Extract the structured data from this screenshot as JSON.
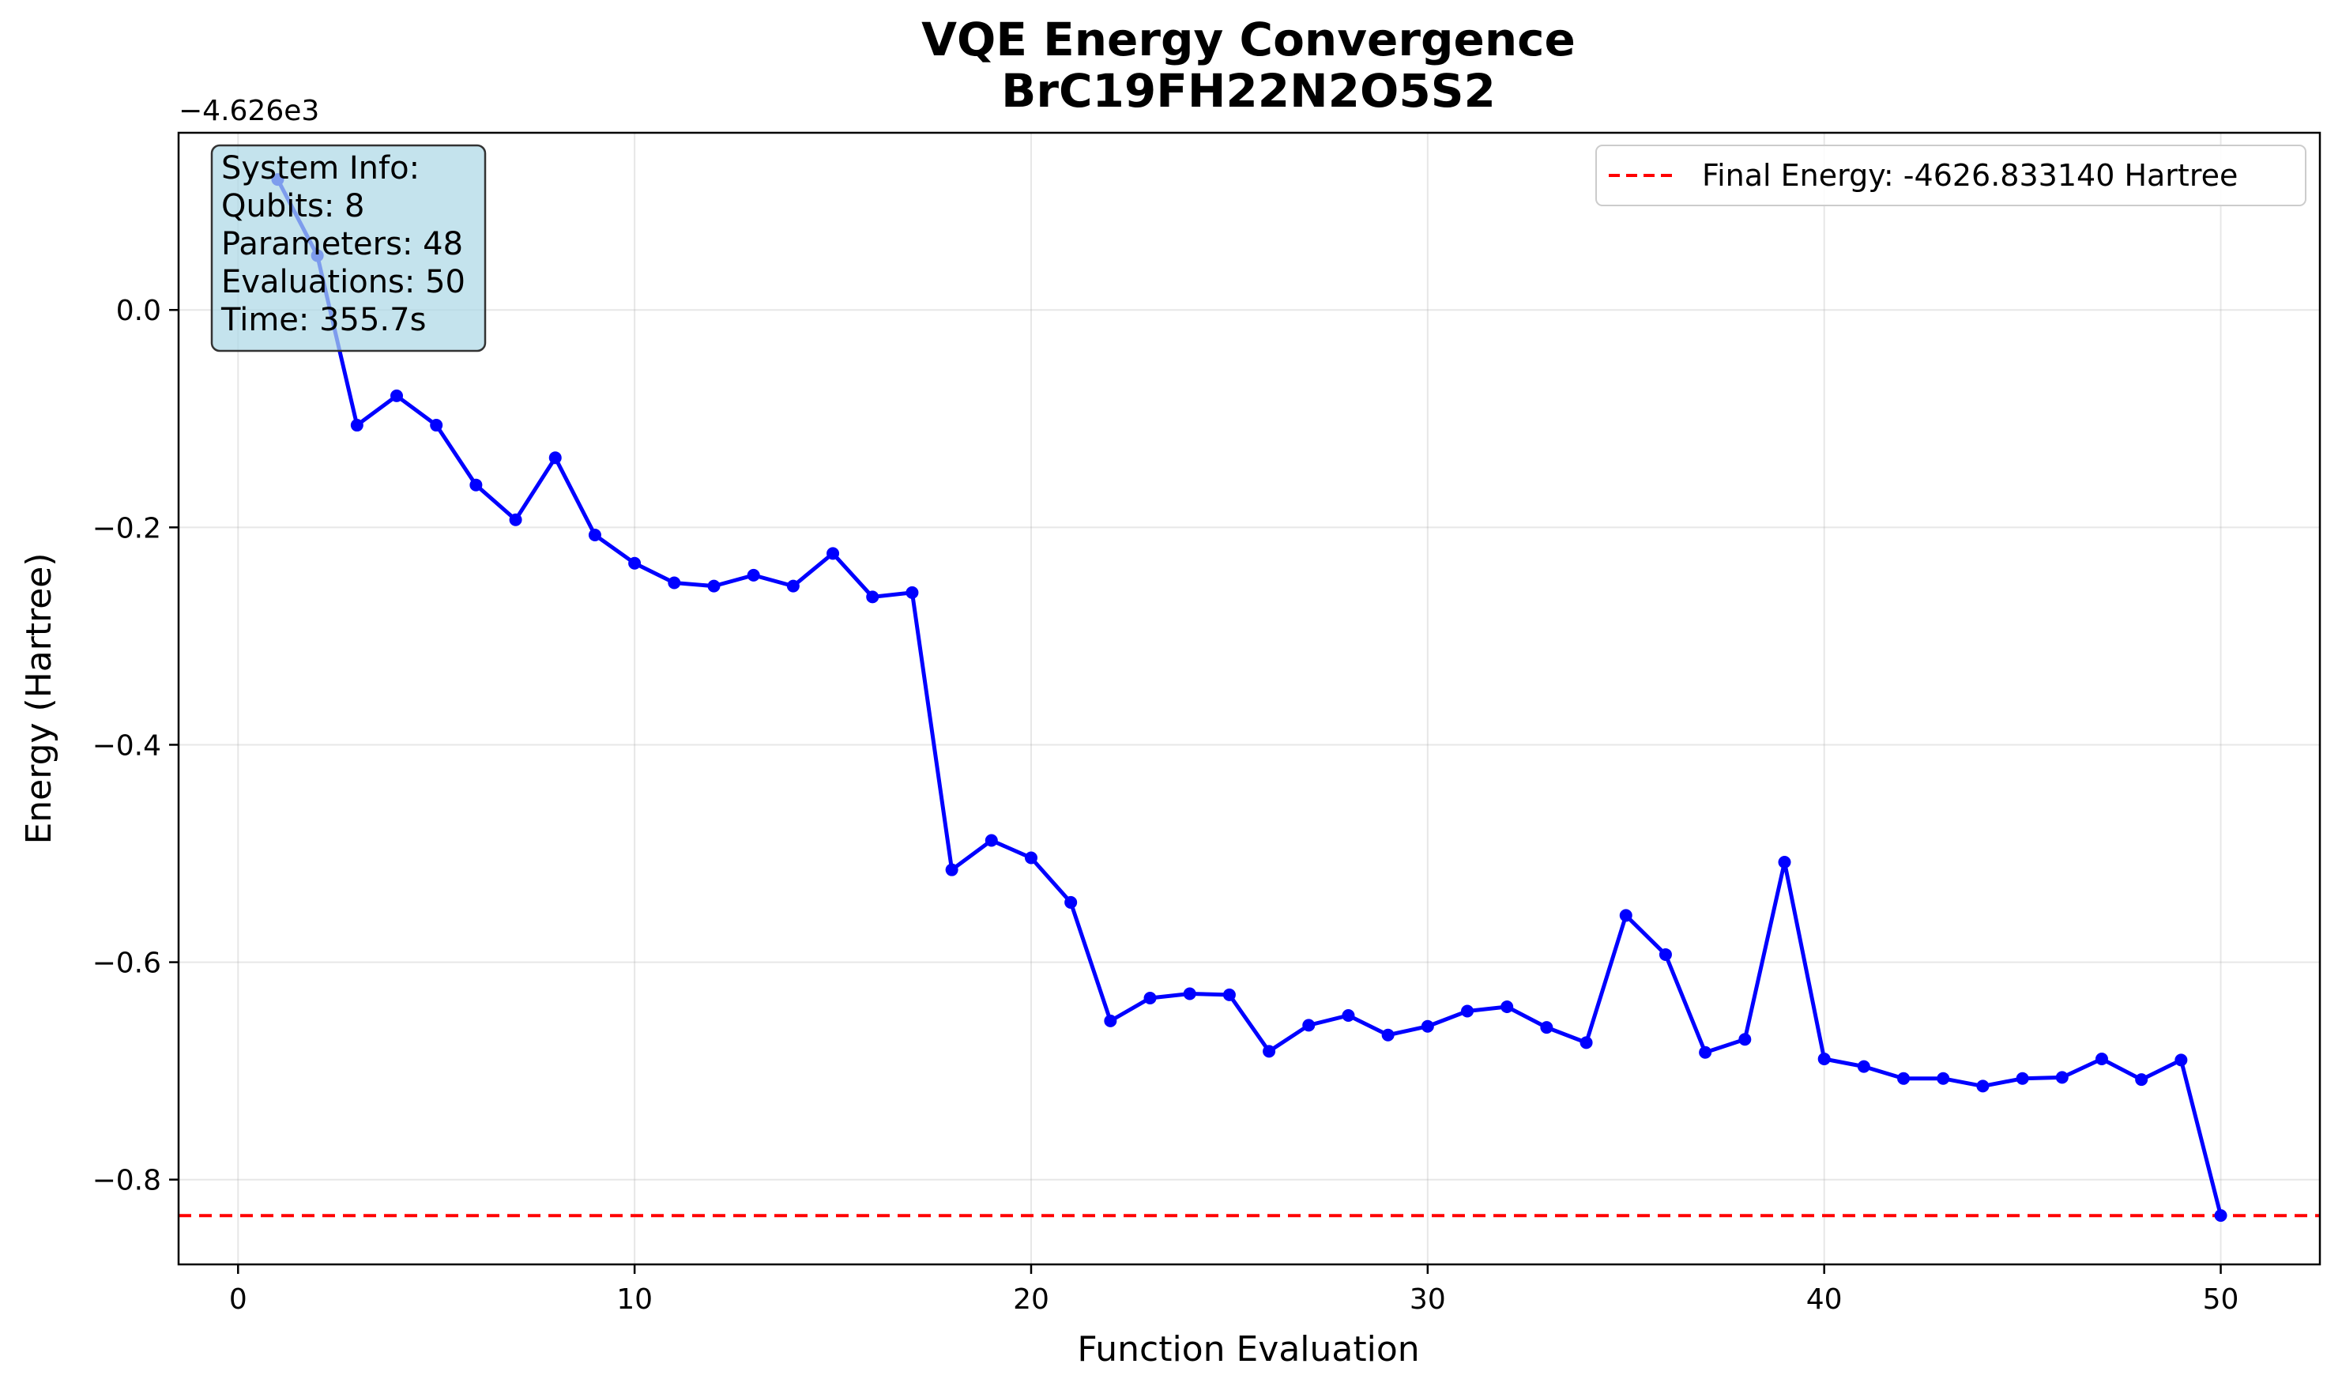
{
  "chart_data": {
    "type": "line",
    "title": "VQE Energy Convergence",
    "subtitle": "BrC19FH22N2O5S2",
    "xlabel": "Function Evaluation",
    "ylabel": "Energy (Hartree)",
    "y_offset_label": "−4.626e3",
    "y_offset": -4626,
    "xlim": [
      -1.5,
      52.5
    ],
    "ylim": [
      -0.878,
      0.163
    ],
    "xticks": [
      0,
      10,
      20,
      30,
      40,
      50
    ],
    "yticks": [
      0.0,
      -0.2,
      -0.4,
      -0.6,
      -0.8
    ],
    "ytick_labels": [
      "0.0",
      "−0.2",
      "−0.4",
      "−0.6",
      "−0.8"
    ],
    "grid": true,
    "series": [
      {
        "color": "#0000ff",
        "marker": "circle",
        "x": [
          1,
          2,
          3,
          4,
          5,
          6,
          7,
          8,
          9,
          10,
          11,
          12,
          13,
          14,
          15,
          16,
          17,
          18,
          19,
          20,
          21,
          22,
          23,
          24,
          25,
          26,
          27,
          28,
          29,
          30,
          31,
          32,
          33,
          34,
          35,
          36,
          37,
          38,
          39,
          40,
          41,
          42,
          43,
          44,
          45,
          46,
          47,
          48,
          49,
          50
        ],
        "y": [
          0.12,
          0.05,
          -0.106,
          -0.079,
          -0.106,
          -0.161,
          -0.193,
          -0.136,
          -0.207,
          -0.233,
          -0.251,
          -0.254,
          -0.244,
          -0.254,
          -0.224,
          -0.264,
          -0.26,
          -0.515,
          -0.488,
          -0.504,
          -0.545,
          -0.654,
          -0.633,
          -0.629,
          -0.63,
          -0.682,
          -0.658,
          -0.649,
          -0.667,
          -0.659,
          -0.645,
          -0.641,
          -0.66,
          -0.674,
          -0.557,
          -0.593,
          -0.683,
          -0.671,
          -0.508,
          -0.689,
          -0.696,
          -0.707,
          -0.707,
          -0.714,
          -0.707,
          -0.706,
          -0.689,
          -0.708,
          -0.69,
          -0.833
        ]
      }
    ],
    "reference_line": {
      "y": -0.83314,
      "color": "#ff0000",
      "style": "dashed",
      "label": "Final Energy: -4626.833140 Hartree"
    },
    "legend": {
      "placement": "top-right"
    },
    "info_box": {
      "lines": [
        "System Info:",
        "Qubits: 8",
        "Parameters: 48",
        "Evaluations: 50",
        "Time: 355.7s"
      ],
      "background": "#add8e6"
    }
  }
}
